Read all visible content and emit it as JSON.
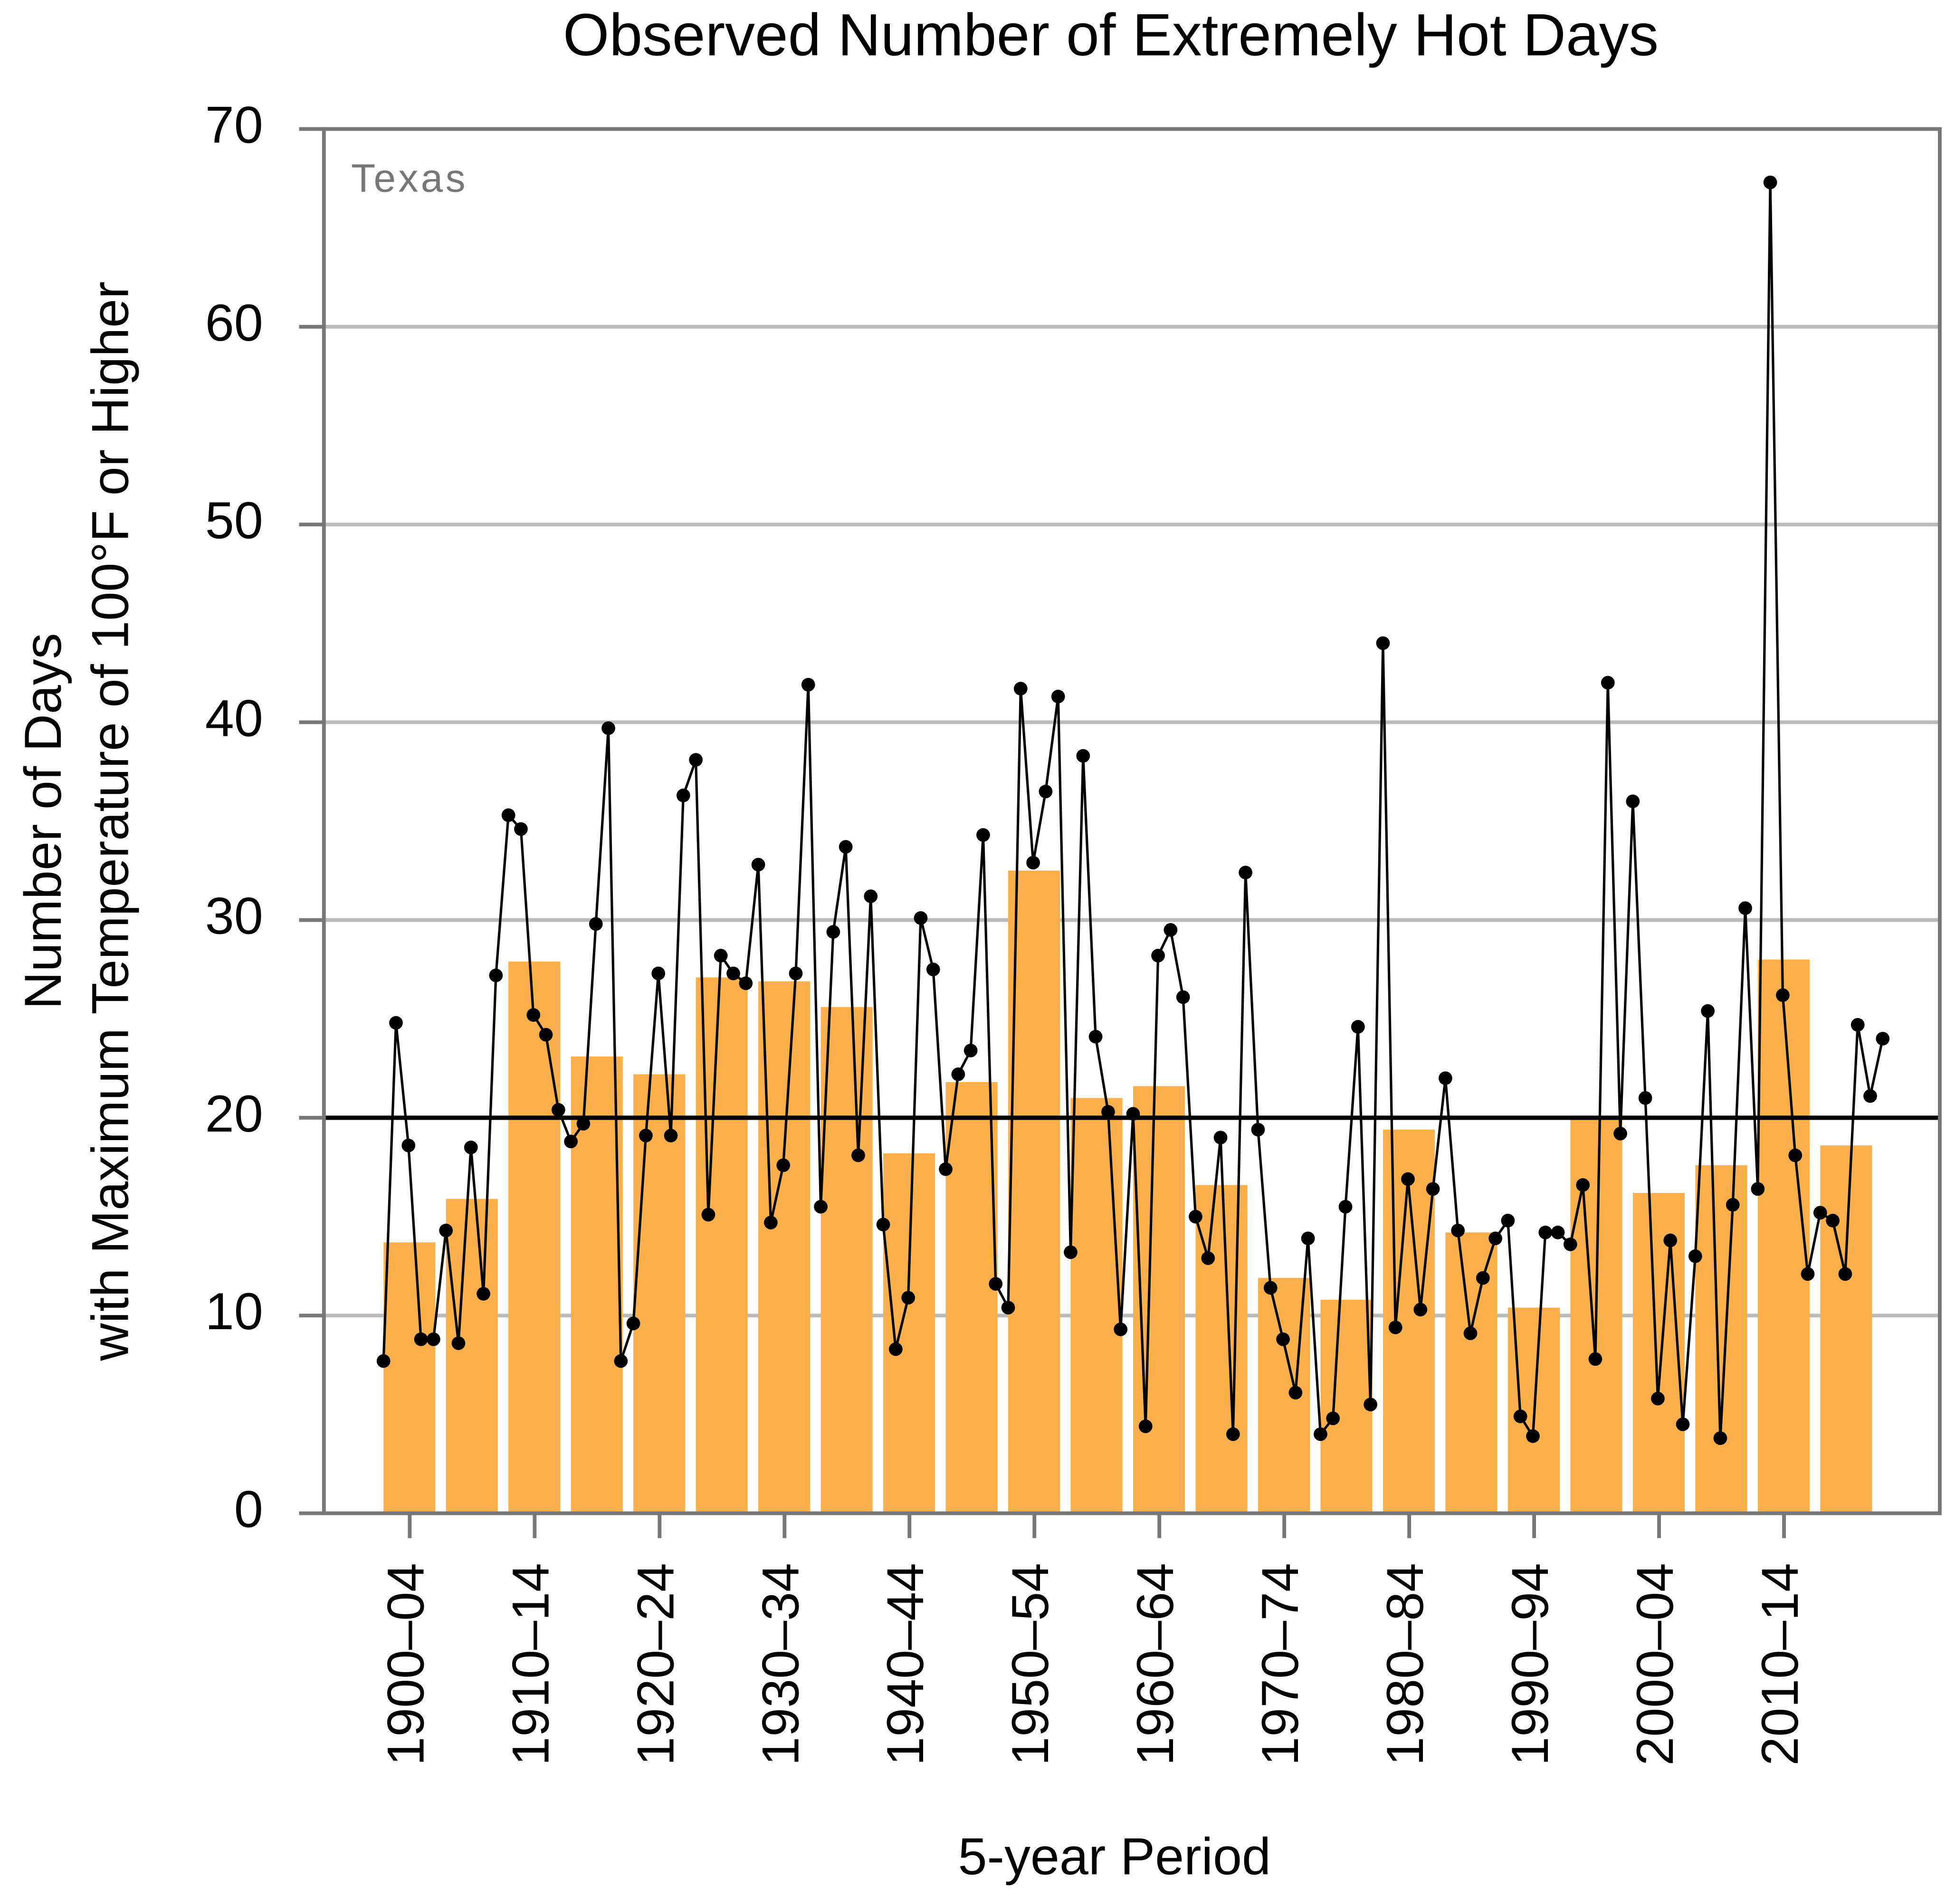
{
  "chart_data": {
    "type": "bar",
    "title": "Observed Number of Extremely Hot Days",
    "annotation": "Texas",
    "xlabel": "5-year Period",
    "ylabel": [
      "Number of Days",
      "with Maximum Temperature of 100°F or Higher"
    ],
    "categories": [
      "1900–04",
      null,
      "1910–14",
      null,
      "1920–24",
      null,
      "1930–34",
      null,
      "1940–44",
      null,
      "1950–54",
      null,
      "1960–64",
      null,
      "1970–74",
      null,
      "1980–84",
      null,
      "1990–94",
      null,
      "2000–04",
      null,
      "2010–14",
      null
    ],
    "values": [
      13.7,
      15.9,
      27.9,
      23.1,
      22.2,
      27.1,
      26.9,
      25.6,
      18.2,
      21.8,
      32.5,
      21.0,
      21.6,
      16.6,
      11.9,
      10.8,
      19.4,
      14.2,
      10.4,
      19.9,
      16.2,
      17.6,
      28.0,
      18.6
    ],
    "color": "#fbb04b",
    "line": {
      "type": "line",
      "color": "#000000",
      "x": [
        1900,
        1901,
        1902,
        1903,
        1904,
        1905,
        1906,
        1907,
        1908,
        1909,
        1910,
        1911,
        1912,
        1913,
        1914,
        1915,
        1916,
        1917,
        1918,
        1919,
        1920,
        1921,
        1922,
        1923,
        1924,
        1925,
        1926,
        1927,
        1928,
        1929,
        1930,
        1931,
        1932,
        1933,
        1934,
        1935,
        1936,
        1937,
        1938,
        1939,
        1940,
        1941,
        1942,
        1943,
        1944,
        1945,
        1946,
        1947,
        1948,
        1949,
        1950,
        1951,
        1952,
        1953,
        1954,
        1955,
        1956,
        1957,
        1958,
        1959,
        1960,
        1961,
        1962,
        1963,
        1964,
        1965,
        1966,
        1967,
        1968,
        1969,
        1970,
        1971,
        1972,
        1973,
        1974,
        1975,
        1976,
        1977,
        1978,
        1979,
        1980,
        1981,
        1982,
        1983,
        1984,
        1985,
        1986,
        1987,
        1988,
        1989,
        1990,
        1991,
        1992,
        1993,
        1994,
        1995,
        1996,
        1997,
        1998,
        1999,
        2000,
        2001,
        2002,
        2003,
        2004,
        2005,
        2006,
        2007,
        2008,
        2009,
        2010,
        2011,
        2012,
        2013,
        2014,
        2015,
        2016,
        2017,
        2018,
        2019,
        2020
      ],
      "values": [
        7.7,
        24.8,
        18.6,
        8.8,
        8.8,
        14.3,
        8.6,
        18.5,
        11.1,
        27.2,
        35.3,
        34.6,
        25.2,
        24.2,
        20.4,
        18.8,
        19.7,
        29.8,
        39.7,
        7.7,
        9.6,
        19.1,
        27.3,
        19.1,
        36.3,
        38.1,
        15.1,
        28.2,
        27.3,
        26.8,
        32.8,
        14.7,
        17.6,
        27.3,
        41.9,
        15.5,
        29.4,
        33.7,
        18.1,
        31.2,
        14.6,
        8.3,
        10.9,
        30.1,
        27.5,
        17.4,
        22.2,
        23.4,
        34.3,
        11.6,
        10.4,
        41.7,
        32.9,
        36.5,
        41.3,
        13.2,
        38.3,
        24.1,
        20.3,
        9.3,
        20.2,
        4.4,
        28.2,
        29.5,
        26.1,
        15.0,
        12.9,
        19.0,
        4.0,
        32.4,
        19.4,
        11.4,
        8.8,
        6.1,
        13.9,
        4.0,
        4.8,
        15.5,
        24.6,
        5.5,
        44.0,
        9.4,
        16.9,
        10.3,
        16.4,
        22.0,
        14.3,
        9.1,
        11.9,
        13.9,
        14.8,
        4.9,
        3.9,
        14.2,
        14.2,
        13.6,
        16.6,
        7.8,
        42.0,
        19.2,
        36.0,
        21.0,
        5.8,
        13.8,
        4.5,
        13.0,
        25.4,
        3.8,
        15.6,
        30.6,
        16.4,
        67.3,
        26.2,
        18.1,
        12.1,
        15.2,
        14.8,
        12.1,
        24.7,
        21.1,
        24.0
      ]
    },
    "average": 20.0,
    "ylim": [
      0,
      70
    ],
    "yticks": [
      0,
      10,
      20,
      30,
      40,
      50,
      60,
      70
    ],
    "grid": true
  }
}
